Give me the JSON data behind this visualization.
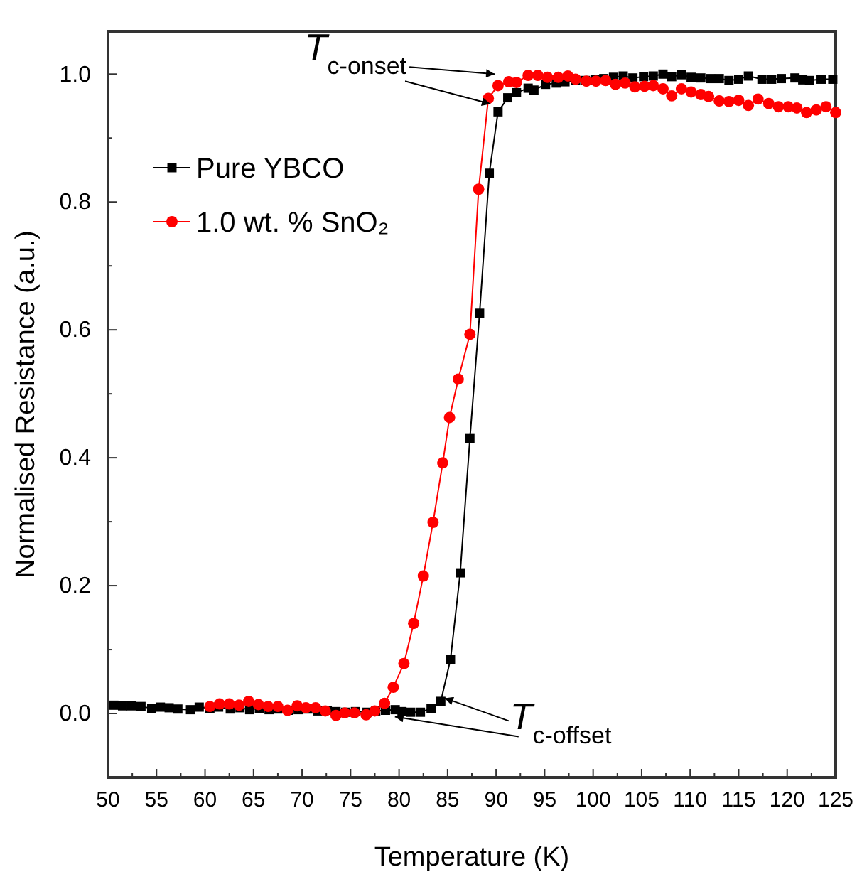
{
  "chart_data": {
    "type": "line",
    "xlabel": "Temperature (K)",
    "ylabel": "Normalised Resistance (a.u.)",
    "xlim": [
      50,
      125
    ],
    "ylim": [
      -0.1,
      1.067
    ],
    "xticks": [
      50,
      {
        "value": 52.5,
        "label": null
      },
      55,
      {
        "value": 57.5,
        "label": null
      },
      60,
      {
        "value": 62.5,
        "label": null
      },
      65,
      {
        "value": 67.5,
        "label": null
      },
      70,
      {
        "value": 72.5,
        "label": null
      },
      75,
      {
        "value": 77.5,
        "label": null
      },
      80,
      {
        "value": 82.5,
        "label": null
      },
      85,
      {
        "value": 87.5,
        "label": null
      },
      90,
      {
        "value": 92.5,
        "label": null
      },
      95,
      {
        "value": 97.5,
        "label": null
      },
      100,
      {
        "value": 102.5,
        "label": null
      },
      105,
      {
        "value": 107.5,
        "label": null
      },
      110,
      {
        "value": 112.5,
        "label": null
      },
      115,
      {
        "value": 117.5,
        "label": null
      },
      120,
      {
        "value": 122.5,
        "label": null
      },
      125
    ],
    "yticks": [
      {
        "value": 0,
        "label": "0.0"
      },
      {
        "value": 0.1,
        "label": null
      },
      {
        "value": 0.2,
        "label": "0.2"
      },
      {
        "value": 0.3,
        "label": null
      },
      {
        "value": 0.4,
        "label": "0.4"
      },
      {
        "value": 0.5,
        "label": null
      },
      {
        "value": 0.6,
        "label": "0.6"
      },
      {
        "value": 0.7,
        "label": null
      },
      {
        "value": 0.8,
        "label": "0.8"
      },
      {
        "value": 0.9,
        "label": null
      },
      {
        "value": 1.0,
        "label": "1.0"
      }
    ],
    "grid": false,
    "legend": "top left",
    "series": [
      {
        "name": "Pure YBCO",
        "color": "#000000",
        "marker": "square",
        "x": [
          50.6,
          51.5,
          52.4,
          53.4,
          54.5,
          55.4,
          56.3,
          57.2,
          58.5,
          59.4,
          60.5,
          61.4,
          62.6,
          63.6,
          64.6,
          65.6,
          66.6,
          67.5,
          68.6,
          69.6,
          70.6,
          71.6,
          72.6,
          73.5,
          74.5,
          75.5,
          76.7,
          77.6,
          78.6,
          79.6,
          80.3,
          81.2,
          82.2,
          83.3,
          84.3,
          85.3,
          86.3,
          87.3,
          88.3,
          89.3,
          90.2,
          91.2,
          92.1,
          93.3,
          93.9,
          95.1,
          96.2,
          97.1,
          98.2,
          99.2,
          100.2,
          101.1,
          102.1,
          103.1,
          104.1,
          105.2,
          106.2,
          107.2,
          108.1,
          109.1,
          110.1,
          111.1,
          112.1,
          113.0,
          114.0,
          115.0,
          116.0,
          117.4,
          118.4,
          119.4,
          120.8,
          121.6,
          122.3,
          123.5,
          124.7
        ],
        "values": [
          0.013,
          0.012,
          0.012,
          0.011,
          0.008,
          0.01,
          0.009,
          0.007,
          0.006,
          0.01,
          0.008,
          0.01,
          0.007,
          0.009,
          0.006,
          0.008,
          0.006,
          0.007,
          0.005,
          0.006,
          0.007,
          0.004,
          0.005,
          0.003,
          0.002,
          0.003,
          0.002,
          0.004,
          0.005,
          0.006,
          0.003,
          0.002,
          0.002,
          0.008,
          0.019,
          0.085,
          0.22,
          0.43,
          0.626,
          0.845,
          0.941,
          0.963,
          0.971,
          0.978,
          0.975,
          0.984,
          0.986,
          0.988,
          0.99,
          0.99,
          0.991,
          0.993,
          0.995,
          0.997,
          0.994,
          0.996,
          0.997,
          1.0,
          0.996,
          0.999,
          0.995,
          0.994,
          0.993,
          0.993,
          0.99,
          0.992,
          0.997,
          0.992,
          0.992,
          0.993,
          0.994,
          0.991,
          0.99,
          0.992,
          0.992
        ]
      },
      {
        "name": "1.0 wt. % SnO₂",
        "color": "#ff0000",
        "marker": "circle",
        "x": [
          60.5,
          61.5,
          62.5,
          63.5,
          64.5,
          65.5,
          66.5,
          67.5,
          68.5,
          69.5,
          70.4,
          71.4,
          72.4,
          73.5,
          74.4,
          75.4,
          76.6,
          77.5,
          78.5,
          79.4,
          80.5,
          81.5,
          82.5,
          83.5,
          84.5,
          85.2,
          86.1,
          87.3,
          88.2,
          89.2,
          90.2,
          91.3,
          92.1,
          93.3,
          94.3,
          95.3,
          96.4,
          97.4,
          98.2,
          99.3,
          100.3,
          101.3,
          102.3,
          103.3,
          104.3,
          105.3,
          106.2,
          107.2,
          108.1,
          109.1,
          110.1,
          111.1,
          111.9,
          113.0,
          114.0,
          115.0,
          116.0,
          117.0,
          118.1,
          119.1,
          120.1,
          121.0,
          122.0,
          123.0,
          124.0,
          125.0
        ],
        "values": [
          0.011,
          0.015,
          0.015,
          0.013,
          0.019,
          0.014,
          0.011,
          0.011,
          0.005,
          0.012,
          0.009,
          0.009,
          0.004,
          -0.003,
          0.001,
          0.001,
          -0.002,
          0.004,
          0.016,
          0.041,
          0.078,
          0.141,
          0.215,
          0.299,
          0.392,
          0.463,
          0.523,
          0.593,
          0.82,
          0.962,
          0.982,
          0.988,
          0.987,
          0.998,
          0.998,
          0.995,
          0.995,
          0.997,
          0.992,
          0.989,
          0.989,
          0.99,
          0.984,
          0.986,
          0.98,
          0.981,
          0.982,
          0.977,
          0.966,
          0.977,
          0.972,
          0.968,
          0.965,
          0.958,
          0.957,
          0.959,
          0.951,
          0.961,
          0.954,
          0.949,
          0.949,
          0.947,
          0.94,
          0.944,
          0.949,
          0.94
        ]
      }
    ],
    "annotations": [
      {
        "text": "T$_{c-onset}$",
        "x": 89.85,
        "y": 1.0
      },
      {
        "text": "T$_{c-offset}$",
        "x": 84.7,
        "y": 0.024
      }
    ]
  }
}
